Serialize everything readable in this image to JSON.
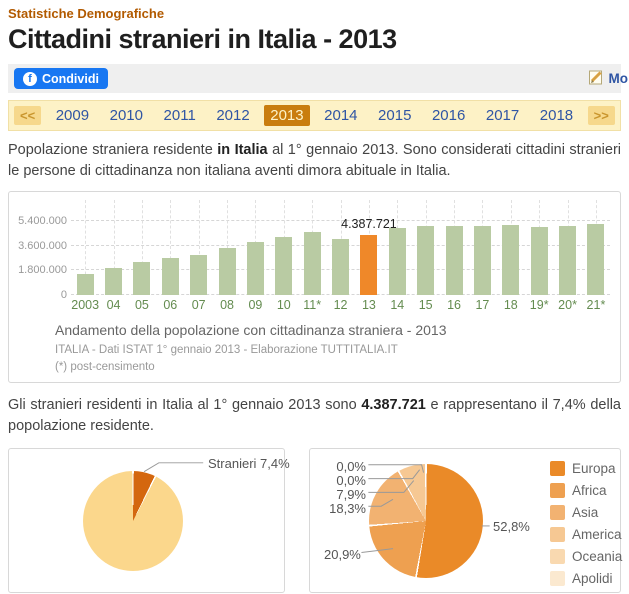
{
  "page": {
    "breadcrumb": "Statistiche Demografiche",
    "title": "Cittadini stranieri in Italia - 2013"
  },
  "share_bar": {
    "facebook_button": "Condividi",
    "edit_link": "Mo"
  },
  "year_nav": {
    "prev_label": "<<",
    "next_label": ">>",
    "selected": "2013",
    "years": [
      "2009",
      "2010",
      "2011",
      "2012",
      "2013",
      "2014",
      "2015",
      "2016",
      "2017",
      "2018"
    ]
  },
  "intro": {
    "text_before_bold": "Popolazione straniera residente ",
    "bold": "in Italia",
    "text_after_bold": " al 1° gennaio 2013. Sono considerati cittadini stranieri le persone di cittadinanza non italiana aventi dimora abituale in Italia."
  },
  "summary": {
    "text_before_bold": "Gli stranieri residenti in Italia al 1° gennaio 2013 sono ",
    "bold": "4.387.721",
    "text_after_bold": " e rappresentano il 7,4% della popolazione residente."
  },
  "chart_data": [
    {
      "id": "population-trend",
      "type": "bar",
      "title": "Andamento della popolazione con cittadinanza straniera - 2013",
      "source": "ITALIA - Dati ISTAT 1° gennaio 2013 - Elaborazione TUTTITALIA.IT",
      "footnote": "(*) post-censimento",
      "categories": [
        "2003",
        "04",
        "05",
        "06",
        "07",
        "08",
        "09",
        "10",
        "11*",
        "12",
        "13",
        "14",
        "15",
        "16",
        "17",
        "18",
        "19*",
        "20*",
        "21*"
      ],
      "values": [
        1549373,
        1990159,
        2402157,
        2670514,
        2938922,
        3432651,
        3891295,
        4235059,
        4570317,
        4052081,
        4387721,
        4922085,
        5014437,
        5026153,
        5047028,
        5144440,
        4996158,
        5039637,
        5171894
      ],
      "highlight_category": "13",
      "highlight_label": "4.387.721",
      "highlight_color": "#ef8829",
      "bar_color": "#b9cba3",
      "grid": true,
      "ylim": [
        0,
        5400000
      ],
      "yticks": [
        {
          "label": "5.400.000",
          "value": 5400000
        },
        {
          "label": "3.600.000",
          "value": 3600000
        },
        {
          "label": "1.800.000",
          "value": 1800000
        },
        {
          "label": "0",
          "value": 0
        }
      ]
    },
    {
      "id": "stranieri-share",
      "type": "pie",
      "label": "Stranieri 7,4%",
      "slices": [
        {
          "name": "Stranieri",
          "pct": 7.4,
          "color": "#d4670f"
        },
        {
          "name": "",
          "pct": 92.6,
          "color": "#fbd78c"
        }
      ]
    },
    {
      "id": "stranieri-per-continente",
      "type": "pie",
      "legend_position": "right",
      "slices": [
        {
          "name": "Europa",
          "pct": 52.8,
          "display": "52,8%",
          "color": "#ea8a28"
        },
        {
          "name": "Africa",
          "pct": 20.9,
          "display": "20,9%",
          "color": "#eea050"
        },
        {
          "name": "Asia",
          "pct": 18.3,
          "display": "18,3%",
          "color": "#f2b271"
        },
        {
          "name": "America",
          "pct": 7.9,
          "display": "7,9%",
          "color": "#f6c893"
        },
        {
          "name": "Oceania",
          "pct": 0.0,
          "display": "0,0%",
          "color": "#f9d9b0"
        },
        {
          "name": "Apolidi",
          "pct": 0.0,
          "display": "0,0%",
          "color": "#fbe9d0"
        }
      ]
    }
  ]
}
